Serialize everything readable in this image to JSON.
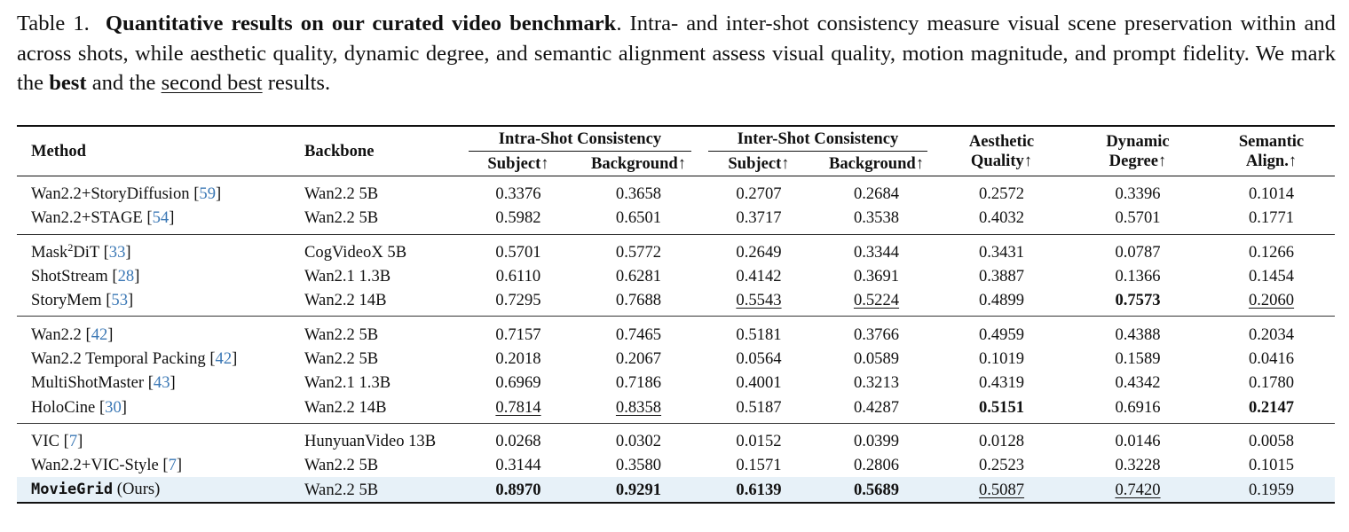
{
  "caption": {
    "label": "Table 1.",
    "title": "Quantitative results on our curated video benchmark",
    "text": ". Intra- and inter-shot consistency measure visual scene preservation within and across shots, while aesthetic quality, dynamic degree, and semantic alignment assess visual quality, motion magnitude, and prompt fidelity. We mark the ",
    "best_word": "best",
    "and_the": " and the ",
    "second_best_word": "second best",
    "tail": " results."
  },
  "table": {
    "headers": {
      "method": "Method",
      "backbone": "Backbone",
      "intra_group": "Intra-Shot Consistency",
      "inter_group": "Inter-Shot Consistency",
      "intra_subject": "Subject↑",
      "intra_background": "Background↑",
      "inter_subject": "Subject↑",
      "inter_background": "Background↑",
      "aesthetic_l1": "Aesthetic",
      "aesthetic_l2": "Quality↑",
      "dynamic_l1": "Dynamic",
      "dynamic_l2": "Degree↑",
      "semantic_l1": "Semantic",
      "semantic_l2": "Align.↑"
    },
    "rows": [
      {
        "method": "Wan2.2+StoryDiffusion",
        "ref": "59",
        "backbone": "Wan2.2 5B",
        "values": [
          "0.3376",
          "0.3658",
          "0.2707",
          "0.2684",
          "0.2572",
          "0.3396",
          "0.1014"
        ]
      },
      {
        "method": "Wan2.2+STAGE",
        "ref": "54",
        "backbone": "Wan2.2 5B",
        "values": [
          "0.5982",
          "0.6501",
          "0.3717",
          "0.3538",
          "0.4032",
          "0.5701",
          "0.1771"
        ]
      },
      {
        "method_pre": "Mask",
        "method_sup": "2",
        "method": "DiT",
        "ref": "33",
        "backbone": "CogVideoX 5B",
        "values": [
          "0.5701",
          "0.5772",
          "0.2649",
          "0.3344",
          "0.3431",
          "0.0787",
          "0.1266"
        ]
      },
      {
        "method": "ShotStream",
        "ref": "28",
        "backbone": "Wan2.1 1.3B",
        "values": [
          "0.6110",
          "0.6281",
          "0.4142",
          "0.3691",
          "0.3887",
          "0.1366",
          "0.1454"
        ]
      },
      {
        "method": "StoryMem",
        "ref": "53",
        "backbone": "Wan2.2 14B",
        "values": [
          "0.7295",
          "0.7688",
          "0.5543",
          "0.5224",
          "0.4899",
          "0.7573",
          "0.2060"
        ]
      },
      {
        "method": "Wan2.2",
        "ref": "42",
        "backbone": "Wan2.2 5B",
        "values": [
          "0.7157",
          "0.7465",
          "0.5181",
          "0.3766",
          "0.4959",
          "0.4388",
          "0.2034"
        ]
      },
      {
        "method": "Wan2.2 Temporal Packing",
        "ref": "42",
        "backbone": "Wan2.2 5B",
        "values": [
          "0.2018",
          "0.2067",
          "0.0564",
          "0.0589",
          "0.1019",
          "0.1589",
          "0.0416"
        ]
      },
      {
        "method": "MultiShotMaster",
        "ref": "43",
        "backbone": "Wan2.1 1.3B",
        "values": [
          "0.6969",
          "0.7186",
          "0.4001",
          "0.3213",
          "0.4319",
          "0.4342",
          "0.1780"
        ]
      },
      {
        "method": "HoloCine",
        "ref": "30",
        "backbone": "Wan2.2 14B",
        "values": [
          "0.7814",
          "0.8358",
          "0.5187",
          "0.4287",
          "0.5151",
          "0.6916",
          "0.2147"
        ]
      },
      {
        "method": "VIC",
        "ref": "7",
        "backbone": "HunyuanVideo 13B",
        "values": [
          "0.0268",
          "0.0302",
          "0.0152",
          "0.0399",
          "0.0128",
          "0.0146",
          "0.0058"
        ]
      },
      {
        "method": "Wan2.2+VIC-Style",
        "ref": "7",
        "backbone": "Wan2.2 5B",
        "values": [
          "0.3144",
          "0.3580",
          "0.1571",
          "0.2806",
          "0.2523",
          "0.3228",
          "0.1015"
        ]
      },
      {
        "method": "MovieGrid",
        "suffix": "(Ours)",
        "backbone": "Wan2.2 5B",
        "values": [
          "0.8970",
          "0.9291",
          "0.6139",
          "0.5689",
          "0.5087",
          "0.7420",
          "0.1959"
        ]
      }
    ]
  }
}
